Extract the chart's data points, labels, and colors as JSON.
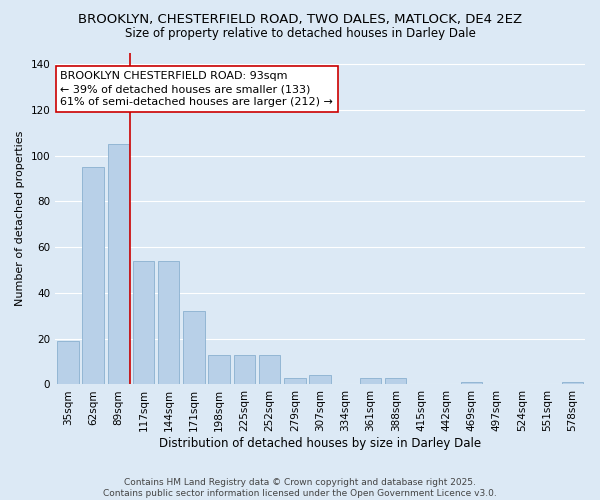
{
  "title": "BROOKLYN, CHESTERFIELD ROAD, TWO DALES, MATLOCK, DE4 2EZ",
  "subtitle": "Size of property relative to detached houses in Darley Dale",
  "xlabel": "Distribution of detached houses by size in Darley Dale",
  "ylabel": "Number of detached properties",
  "categories": [
    "35sqm",
    "62sqm",
    "89sqm",
    "117sqm",
    "144sqm",
    "171sqm",
    "198sqm",
    "225sqm",
    "252sqm",
    "279sqm",
    "307sqm",
    "334sqm",
    "361sqm",
    "388sqm",
    "415sqm",
    "442sqm",
    "469sqm",
    "497sqm",
    "524sqm",
    "551sqm",
    "578sqm"
  ],
  "values": [
    19,
    95,
    105,
    54,
    54,
    32,
    13,
    13,
    13,
    3,
    4,
    0,
    3,
    3,
    0,
    0,
    1,
    0,
    0,
    0,
    1
  ],
  "bar_color": "#b8d0e8",
  "bar_edge_color": "#8ab0d0",
  "background_color": "#dce9f5",
  "grid_color": "#ffffff",
  "vline_x": 2.48,
  "vline_color": "#cc0000",
  "annotation_line1": "BROOKLYN CHESTERFIELD ROAD: 93sqm",
  "annotation_line2": "← 39% of detached houses are smaller (133)",
  "annotation_line3": "61% of semi-detached houses are larger (212) →",
  "annotation_box_color": "#ffffff",
  "annotation_box_edge": "#cc0000",
  "ylim": [
    0,
    145
  ],
  "yticks": [
    0,
    20,
    40,
    60,
    80,
    100,
    120,
    140
  ],
  "footnote": "Contains HM Land Registry data © Crown copyright and database right 2025.\nContains public sector information licensed under the Open Government Licence v3.0.",
  "title_fontsize": 9.5,
  "subtitle_fontsize": 8.5,
  "ylabel_fontsize": 8,
  "xlabel_fontsize": 8.5,
  "tick_fontsize": 7.5,
  "annot_fontsize": 8,
  "footnote_fontsize": 6.5
}
